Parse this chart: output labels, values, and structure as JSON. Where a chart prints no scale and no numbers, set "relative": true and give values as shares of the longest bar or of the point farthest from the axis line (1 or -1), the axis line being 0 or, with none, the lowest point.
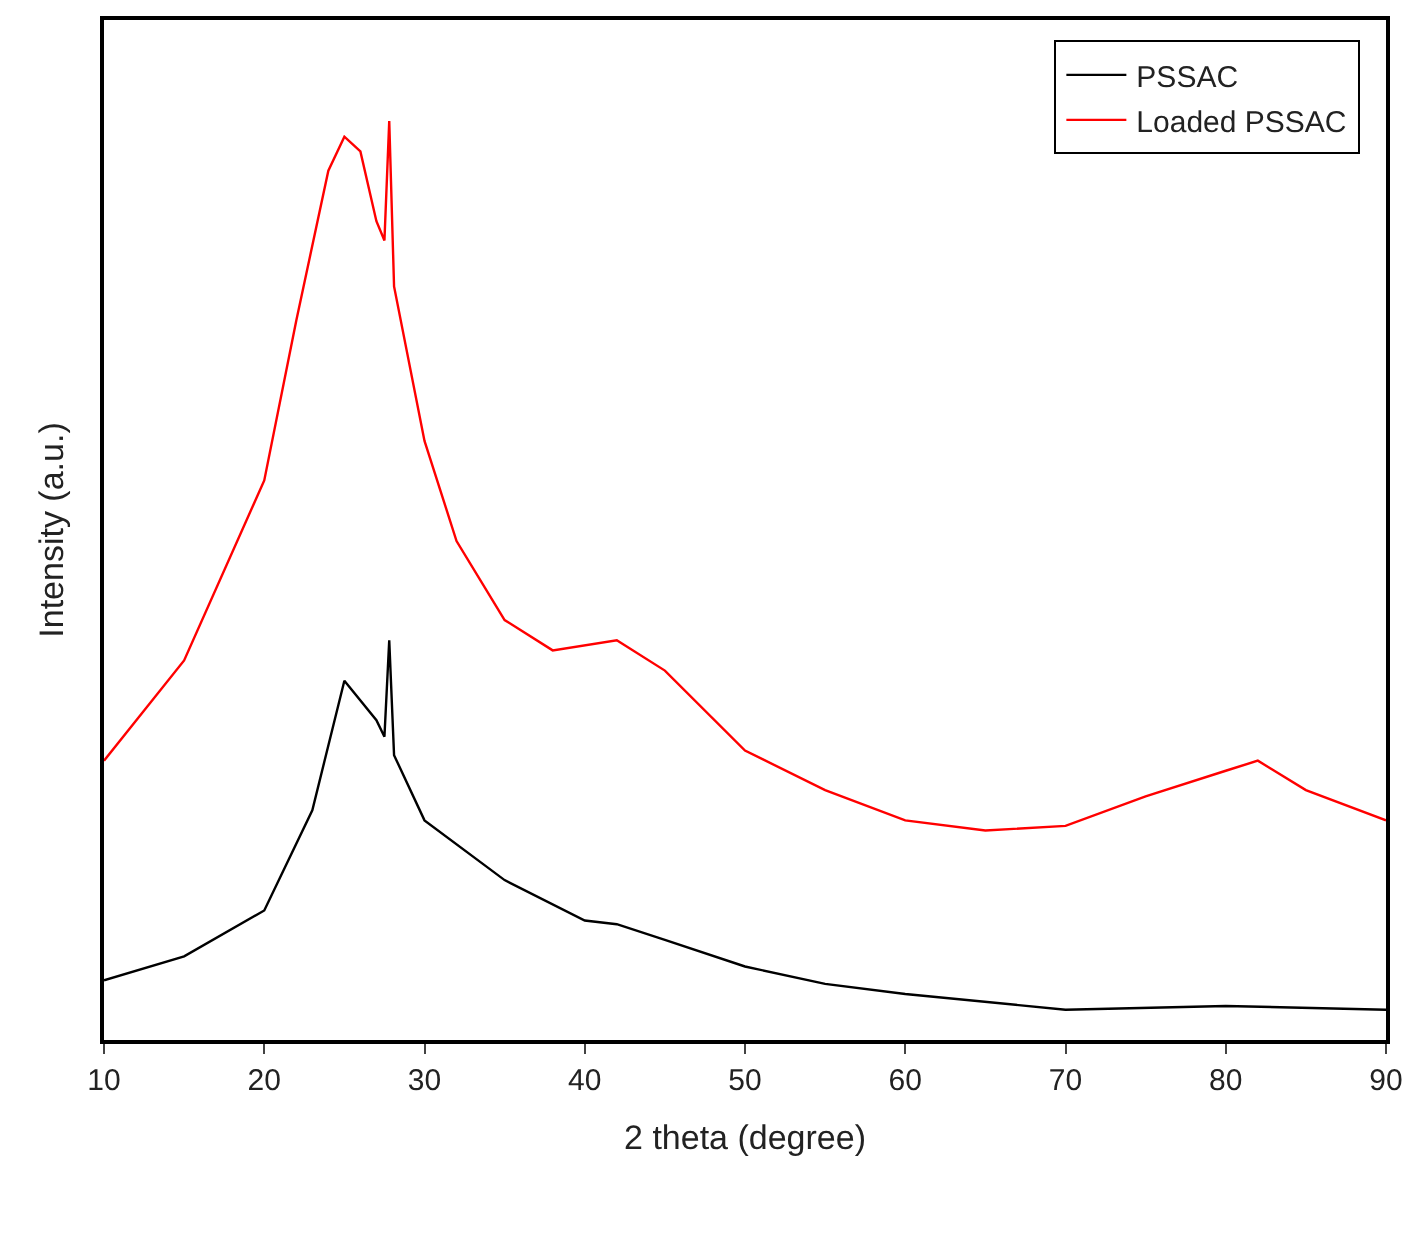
{
  "chart_data": {
    "type": "line",
    "xlabel": "2 theta (degree)",
    "ylabel": "Intensity (a.u.)",
    "relative": true,
    "xlim": [
      10,
      90
    ],
    "xticks": [
      10,
      20,
      30,
      40,
      50,
      60,
      70,
      80,
      90
    ],
    "legend": "top right",
    "series": [
      {
        "name": "PSSAC",
        "color": "#000000",
        "x": [
          10,
          15,
          20,
          23,
          25,
          27,
          27.5,
          27.8,
          28.1,
          30,
          35,
          40,
          42,
          45,
          50,
          55,
          60,
          70,
          80,
          90
        ],
        "values": [
          0.065,
          0.091,
          0.141,
          0.25,
          0.391,
          0.348,
          0.33,
          0.435,
          0.31,
          0.239,
          0.174,
          0.13,
          0.126,
          0.109,
          0.08,
          0.061,
          0.05,
          0.033,
          0.037,
          0.033
        ]
      },
      {
        "name": "Loaded PSSAC",
        "color": "#ff0000",
        "x": [
          10,
          15,
          20,
          22,
          24,
          25,
          26,
          27,
          27.5,
          27.8,
          28.1,
          30,
          32,
          35,
          38,
          42,
          45,
          50,
          55,
          60,
          65,
          70,
          75,
          80,
          82,
          85,
          90
        ],
        "values": [
          0.304,
          0.413,
          0.609,
          0.783,
          0.946,
          0.983,
          0.967,
          0.891,
          0.87,
          1,
          0.82,
          0.652,
          0.543,
          0.457,
          0.424,
          0.435,
          0.402,
          0.315,
          0.272,
          0.239,
          0.228,
          0.233,
          0.265,
          0.293,
          0.304,
          0.272,
          0.239
        ]
      }
    ]
  }
}
